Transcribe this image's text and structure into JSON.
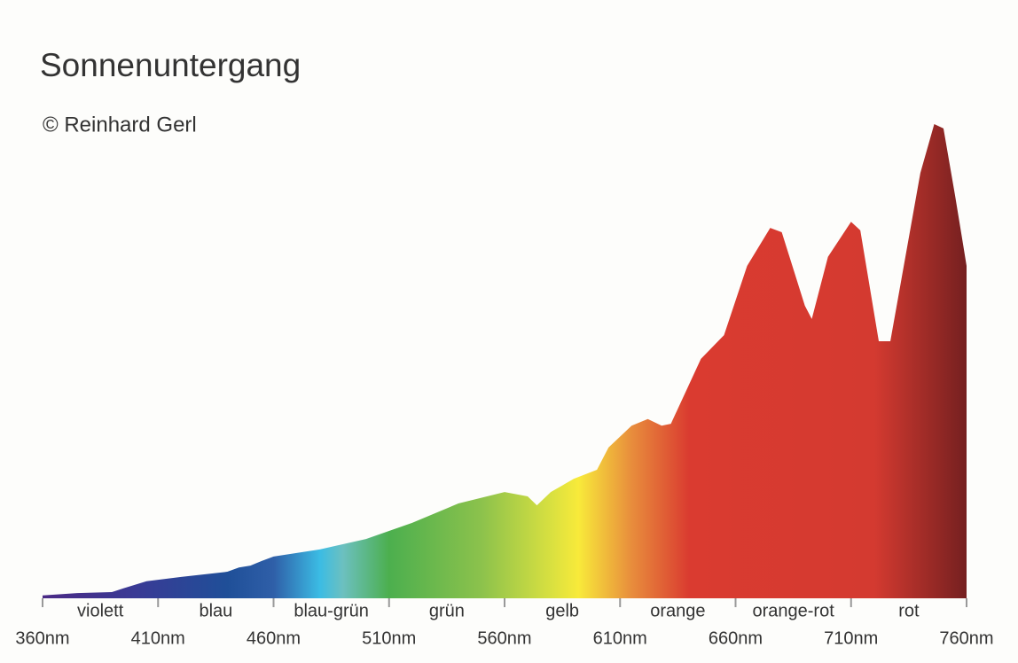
{
  "chart_data": {
    "type": "area",
    "title": "Sonnenuntergang",
    "subtitle": "© Reinhard Gerl",
    "x": [
      360,
      375,
      390,
      395,
      405,
      420,
      440,
      445,
      450,
      455,
      460,
      480,
      500,
      520,
      540,
      560,
      570,
      574,
      580,
      590,
      600,
      605,
      615,
      622,
      628,
      632,
      645,
      655,
      665,
      675,
      680,
      690,
      693,
      700,
      710,
      714,
      722,
      727,
      740,
      746,
      750,
      755,
      758,
      760
    ],
    "values": [
      0.6,
      1.1,
      1.3,
      2.1,
      3.6,
      4.5,
      5.6,
      6.5,
      6.9,
      7.9,
      8.8,
      10.3,
      12.5,
      15.9,
      20.0,
      22.4,
      21.5,
      19.6,
      22.4,
      25.2,
      27.1,
      31.8,
      36.4,
      37.8,
      36.4,
      36.8,
      50.5,
      55.5,
      70.1,
      78.1,
      77.2,
      61.7,
      58.9,
      72.0,
      79.4,
      77.6,
      54.2,
      54.2,
      89.7,
      100,
      99.1,
      85.0,
      76.1,
      70.1
    ],
    "xlim": [
      360,
      760
    ],
    "ylim": [
      0,
      100
    ],
    "xticks": [
      {
        "value": 360,
        "label": "360nm"
      },
      {
        "value": 410,
        "label": "410nm"
      },
      {
        "value": 460,
        "label": "460nm"
      },
      {
        "value": 510,
        "label": "510nm"
      },
      {
        "value": 560,
        "label": "560nm"
      },
      {
        "value": 610,
        "label": "610nm"
      },
      {
        "value": 660,
        "label": "660nm"
      },
      {
        "value": 710,
        "label": "710nm"
      },
      {
        "value": 760,
        "label": "760nm"
      }
    ],
    "bands": [
      "violett",
      "blau",
      "blau-grün",
      "grün",
      "gelb",
      "orange",
      "orange-rot",
      "rot"
    ],
    "gradient": [
      {
        "at": 360,
        "color": "#4a2a85"
      },
      {
        "at": 400,
        "color": "#3a3a95"
      },
      {
        "at": 440,
        "color": "#1f4f98"
      },
      {
        "at": 460,
        "color": "#2f5fa8"
      },
      {
        "at": 480,
        "color": "#3bbce4"
      },
      {
        "at": 490,
        "color": "#6cc0c0"
      },
      {
        "at": 510,
        "color": "#4caf4e"
      },
      {
        "at": 550,
        "color": "#8cc24c"
      },
      {
        "at": 580,
        "color": "#d8e040"
      },
      {
        "at": 592,
        "color": "#f8ea3a"
      },
      {
        "at": 615,
        "color": "#e88d3c"
      },
      {
        "at": 640,
        "color": "#da3b30"
      },
      {
        "at": 720,
        "color": "#d43a30"
      },
      {
        "at": 760,
        "color": "#752020"
      }
    ]
  }
}
